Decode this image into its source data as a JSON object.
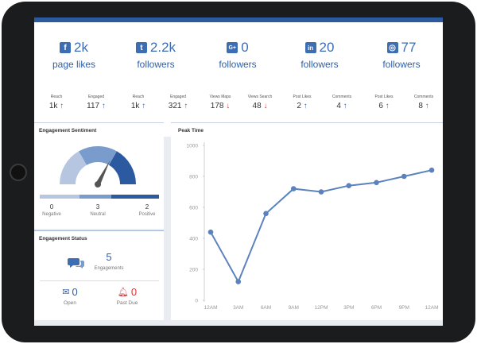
{
  "social": [
    {
      "icon": "facebook-icon",
      "glyph": "f",
      "count": "2k",
      "label": "page likes",
      "metrics": [
        {
          "label": "Reach",
          "value": "1k",
          "trend": "up"
        },
        {
          "label": "Engaged",
          "value": "117",
          "trend": "up"
        }
      ]
    },
    {
      "icon": "twitter-icon",
      "glyph": "t",
      "count": "2.2k",
      "label": "followers",
      "metrics": [
        {
          "label": "Reach",
          "value": "1k",
          "trend": "up"
        },
        {
          "label": "Engaged",
          "value": "321",
          "trend": "up"
        }
      ]
    },
    {
      "icon": "google-plus-icon",
      "glyph": "G+",
      "count": "0",
      "label": "followers",
      "metrics": [
        {
          "label": "Views Maps",
          "value": "178",
          "trend": "down"
        },
        {
          "label": "Views Search",
          "value": "48",
          "trend": "down"
        }
      ]
    },
    {
      "icon": "linkedin-icon",
      "glyph": "in",
      "count": "20",
      "label": "followers",
      "metrics": [
        {
          "label": "Post Likes",
          "value": "2",
          "trend": "up"
        },
        {
          "label": "Comments",
          "value": "4",
          "trend": "up"
        }
      ]
    },
    {
      "icon": "instagram-icon",
      "glyph": "◎",
      "count": "77",
      "label": "followers",
      "metrics": [
        {
          "label": "Post Likes",
          "value": "6",
          "trend": "up"
        },
        {
          "label": "Comments",
          "value": "8",
          "trend": "up"
        }
      ]
    }
  ],
  "sentiment": {
    "title": "Engagement Sentiment",
    "needle_fraction": 0.65,
    "colors": {
      "negative": "#b7c6e0",
      "neutral": "#7a9ccc",
      "positive": "#2c5aa0"
    },
    "items": [
      {
        "label": "Negative",
        "value": "0"
      },
      {
        "label": "Neutral",
        "value": "3"
      },
      {
        "label": "Positive",
        "value": "2"
      }
    ]
  },
  "status": {
    "title": "Engagement Status",
    "engagements": {
      "value": "5",
      "label": "Engagements"
    },
    "open": {
      "value": "0",
      "label": "Open"
    },
    "past_due": {
      "value": "0",
      "label": "Past Due"
    }
  },
  "chart_data": {
    "type": "line",
    "title": "Peak Time",
    "categories": [
      "12AM",
      "3AM",
      "6AM",
      "9AM",
      "12PM",
      "3PM",
      "6PM",
      "9PM",
      "12AM"
    ],
    "series": [
      {
        "values": [
          440,
          120,
          560,
          720,
          700,
          740,
          760,
          800,
          840
        ]
      }
    ],
    "ylim": [
      0,
      1000
    ],
    "yticks": [
      "0",
      "200",
      "400",
      "600",
      "800",
      "1000"
    ],
    "grid": false,
    "color": "#5b82bd"
  }
}
